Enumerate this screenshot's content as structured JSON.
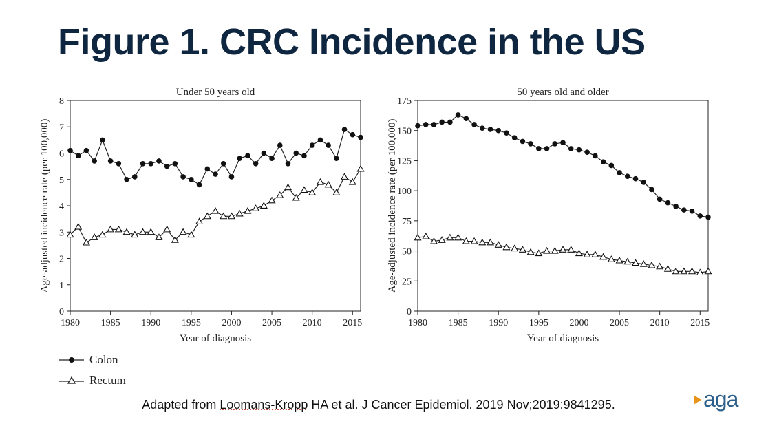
{
  "slide": {
    "title": "Figure 1. CRC Incidence in the US"
  },
  "citation": {
    "prefix": "Adapted from ",
    "author": "Loomans-Kropp",
    "rest": " HA et al. J Cancer Epidemiol. 2019 Nov;2019:9841295."
  },
  "logo": {
    "text": "aga",
    "mark_icon": "play-arrow-icon",
    "mark_color": "#e8941a",
    "text_color": "#2c5f8a"
  },
  "legend": {
    "placement": "bottom-left",
    "items": [
      {
        "label": "Colon",
        "marker": "filled-circle"
      },
      {
        "label": "Rectum",
        "marker": "open-triangle"
      }
    ]
  },
  "chart_data": [
    {
      "type": "line",
      "title": "Under 50 years old",
      "xlabel": "Year of diagnosis",
      "ylabel": "Age-adjusted incidence rate (per 100,000)",
      "xlim": [
        1980,
        2016
      ],
      "ylim": [
        0,
        8
      ],
      "xticks": [
        1980,
        1985,
        1990,
        1995,
        2000,
        2005,
        2010,
        2015
      ],
      "yticks": [
        0,
        1,
        2,
        3,
        4,
        5,
        6,
        7,
        8
      ],
      "x": [
        1980,
        1981,
        1982,
        1983,
        1984,
        1985,
        1986,
        1987,
        1988,
        1989,
        1990,
        1991,
        1992,
        1993,
        1994,
        1995,
        1996,
        1997,
        1998,
        1999,
        2000,
        2001,
        2002,
        2003,
        2004,
        2005,
        2006,
        2007,
        2008,
        2009,
        2010,
        2011,
        2012,
        2013,
        2014,
        2015,
        2016
      ],
      "series": [
        {
          "name": "Colon",
          "marker": "filled-circle",
          "values": [
            6.1,
            5.9,
            6.1,
            5.7,
            6.5,
            5.7,
            5.6,
            5.0,
            5.1,
            5.6,
            5.6,
            5.7,
            5.5,
            5.6,
            5.1,
            5.0,
            4.8,
            5.4,
            5.2,
            5.6,
            5.1,
            5.8,
            5.9,
            5.6,
            6.0,
            5.8,
            6.3,
            5.6,
            6.0,
            5.9,
            6.3,
            6.5,
            6.3,
            5.8,
            6.9,
            6.7,
            6.6
          ]
        },
        {
          "name": "Rectum",
          "marker": "open-triangle",
          "values": [
            2.9,
            3.2,
            2.6,
            2.8,
            2.9,
            3.1,
            3.1,
            3.0,
            2.9,
            3.0,
            3.0,
            2.8,
            3.1,
            2.7,
            3.0,
            2.9,
            3.4,
            3.6,
            3.8,
            3.6,
            3.6,
            3.7,
            3.8,
            3.9,
            4.0,
            4.2,
            4.4,
            4.7,
            4.3,
            4.6,
            4.5,
            4.9,
            4.8,
            4.5,
            5.1,
            4.9,
            5.4
          ]
        }
      ]
    },
    {
      "type": "line",
      "title": "50 years old and older",
      "xlabel": "Year of diagnosis",
      "ylabel": "Age-adjusted incidence rate (per 100,000)",
      "xlim": [
        1980,
        2016
      ],
      "ylim": [
        0,
        175
      ],
      "xticks": [
        1980,
        1985,
        1990,
        1995,
        2000,
        2005,
        2010,
        2015
      ],
      "yticks": [
        0,
        25,
        50,
        75,
        100,
        125,
        150,
        175
      ],
      "x": [
        1980,
        1981,
        1982,
        1983,
        1984,
        1985,
        1986,
        1987,
        1988,
        1989,
        1990,
        1991,
        1992,
        1993,
        1994,
        1995,
        1996,
        1997,
        1998,
        1999,
        2000,
        2001,
        2002,
        2003,
        2004,
        2005,
        2006,
        2007,
        2008,
        2009,
        2010,
        2011,
        2012,
        2013,
        2014,
        2015,
        2016
      ],
      "series": [
        {
          "name": "Colon",
          "marker": "filled-circle",
          "values": [
            154,
            155,
            155,
            157,
            157,
            163,
            160,
            155,
            152,
            151,
            150,
            148,
            144,
            141,
            139,
            135,
            135,
            139,
            140,
            135,
            134,
            132,
            129,
            124,
            121,
            115,
            112,
            110,
            107,
            101,
            93,
            90,
            87,
            84,
            83,
            79,
            78
          ]
        },
        {
          "name": "Rectum",
          "marker": "open-triangle",
          "values": [
            61,
            62,
            58,
            59,
            61,
            61,
            58,
            58,
            57,
            57,
            55,
            53,
            52,
            51,
            49,
            48,
            50,
            50,
            51,
            51,
            48,
            47,
            47,
            45,
            43,
            42,
            41,
            40,
            39,
            38,
            37,
            35,
            33,
            33,
            33,
            32,
            33
          ]
        }
      ]
    }
  ]
}
